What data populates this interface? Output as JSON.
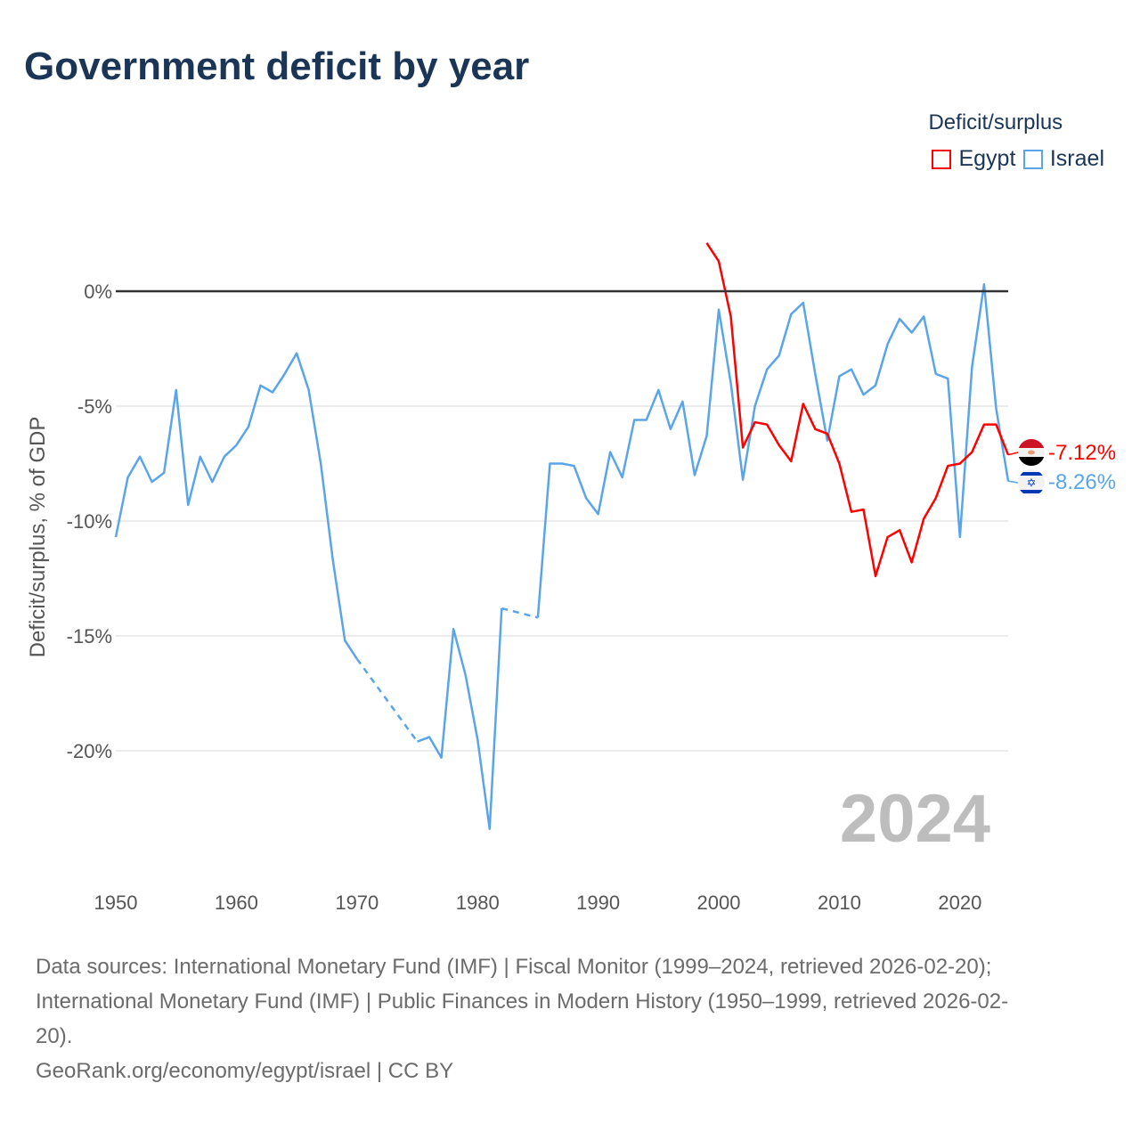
{
  "title": "Government deficit by year",
  "legend": {
    "title": "Deficit/surplus",
    "items": [
      {
        "label": "Egypt",
        "color": "#ff0000"
      },
      {
        "label": "Israel",
        "color": "#5aa5ea"
      }
    ]
  },
  "year_watermark": "2024",
  "footer": {
    "line1": "Data sources: International Monetary Fund (IMF) | Fiscal Monitor (1999–2024, retrieved 2026-02-20);",
    "line2": "International Monetary Fund (IMF) | Public Finances in Modern History (1950–1999, retrieved 2026-02-",
    "line3": "20).",
    "line4": "GeoRank.org/economy/egypt/israel | CC BY"
  },
  "chart_data": {
    "type": "line",
    "title": "Government deficit by year",
    "xlabel": "",
    "ylabel": "Deficit/surplus, % of GDP",
    "xlim": [
      1950,
      2024
    ],
    "ylim": [
      -25,
      2.5
    ],
    "x_ticks": [
      1950,
      1960,
      1970,
      1980,
      1990,
      2000,
      2010,
      2020
    ],
    "x_tick_labels": [
      "1950",
      "1960",
      "1970",
      "1980",
      "1990",
      "2000",
      "2010",
      "2020"
    ],
    "y_ticks": [
      0,
      -5,
      -10,
      -15,
      -20
    ],
    "y_tick_labels": [
      "0%",
      "-5%",
      "-10%",
      "-15%",
      "-20%"
    ],
    "legend_position": "top-right",
    "series": [
      {
        "name": "Egypt",
        "color": "#ff0000",
        "end_label": "-7.12%",
        "start_year": 1999,
        "values": [
          2.1,
          1.3,
          -1.1,
          -6.8,
          -5.7,
          -5.8,
          -6.7,
          -7.4,
          -4.9,
          -6.0,
          -6.2,
          -7.5,
          -9.6,
          -9.5,
          -12.4,
          -10.7,
          -10.4,
          -11.8,
          -9.9,
          -9.0,
          -7.6,
          -7.5,
          -7.0,
          -5.8,
          -5.8,
          -7.12
        ]
      },
      {
        "name": "Israel",
        "color": "#5aa5ea",
        "end_label": "-8.26%",
        "start_year": 1950,
        "values": [
          -10.7,
          -8.1,
          -7.2,
          -8.3,
          -7.9,
          -4.3,
          -9.3,
          -7.2,
          -8.3,
          -7.2,
          -6.7,
          -5.9,
          -4.1,
          -4.4,
          -3.6,
          -2.7,
          -4.3,
          -7.5,
          -11.7,
          -15.2,
          -16.0,
          null,
          null,
          null,
          null,
          -19.6,
          -19.4,
          -20.3,
          -14.7,
          -16.7,
          -19.5,
          -23.4,
          -13.8,
          null,
          null,
          -14.2,
          -7.5,
          -7.5,
          -7.6,
          -9.0,
          -9.7,
          -7.0,
          -8.1,
          -5.6,
          -5.6,
          -4.3,
          -6.0,
          -4.8,
          -8.0,
          -6.3,
          -0.8,
          -4.0,
          -8.2,
          -5.0,
          -3.4,
          -2.8,
          -1.0,
          -0.5,
          -3.6,
          -6.5,
          -3.7,
          -3.4,
          -4.5,
          -4.1,
          -2.3,
          -1.2,
          -1.8,
          -1.1,
          -3.6,
          -3.8,
          -10.7,
          -3.3,
          0.3,
          -5.1,
          -8.26
        ]
      }
    ]
  }
}
